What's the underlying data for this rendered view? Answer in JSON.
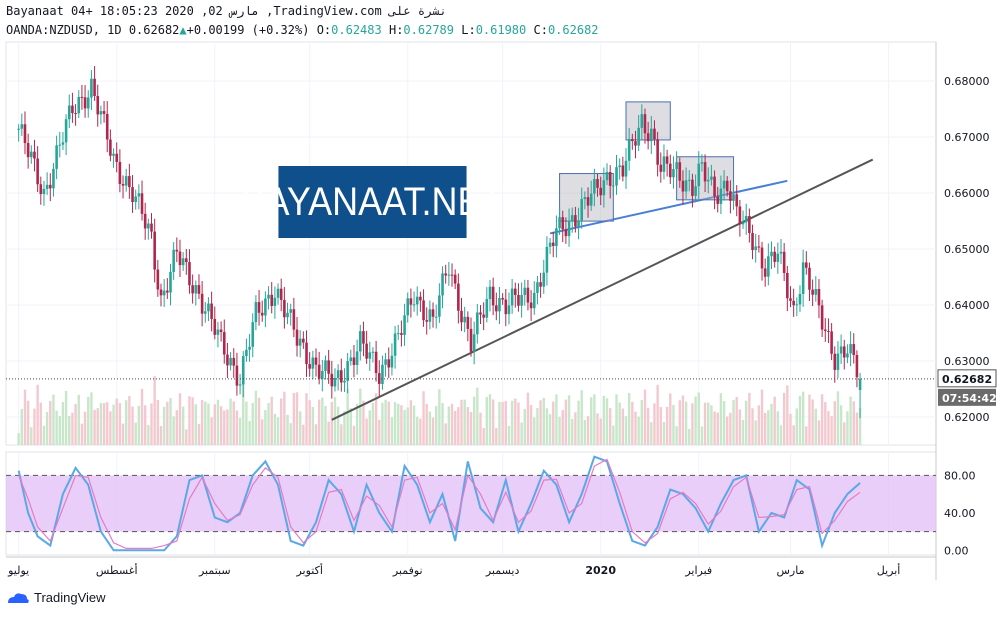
{
  "header": {
    "line1": "Bayanaat 04+ 18:05:23 2020 ,02 مارس ,TradingView.com نشرة على",
    "symbol": "OANDA:NZDUSD, 1D",
    "last": "0.62682",
    "change": "+0.00199 (+0.32%)",
    "o_label": "O:",
    "o": "0.62483",
    "h_label": "H:",
    "h": "0.62789",
    "l_label": "L:",
    "l": "0.61980",
    "c_label": "C:",
    "c": "0.62682"
  },
  "logo_text": "BAYANAAT.NET",
  "footer": {
    "brand": "TradingView"
  },
  "colors": {
    "up": "#26a69a",
    "down": "#b2264c",
    "volume_up": "#c8e6c9",
    "volume_down": "#f3c9cf",
    "trend": "#555555",
    "neck": "#4a7fd4",
    "stoch_k": "#5aa8e8",
    "stoch_d": "#e57bc4",
    "stoch_band": "#e1bdf7"
  },
  "chart_data": [
    {
      "type": "candlestick",
      "title": "",
      "ylim": [
        0.615,
        0.687
      ],
      "y_ticks": [
        "0.68000",
        "0.67000",
        "0.66000",
        "0.65000",
        "0.64000",
        "0.63000",
        "0.62000"
      ],
      "y_tick_values": [
        0.68,
        0.67,
        0.66,
        0.65,
        0.64,
        0.63,
        0.62
      ],
      "x_ticks": [
        "يوليو",
        "أغسطس",
        "سبتمبر",
        "أكتوبر",
        "نوفمبر",
        "ديسمبر",
        "2020",
        "فبراير",
        "مارس",
        "أبريل"
      ],
      "x_tick_days": [
        0,
        31,
        62,
        92,
        123,
        153,
        184,
        215,
        244,
        275
      ],
      "last_price_label": "0.62682",
      "countdown_label": "07:54:42",
      "trend_lines": [
        {
          "name": "support",
          "x": [
            99,
            270
          ],
          "y": [
            0.6195,
            0.666
          ]
        },
        {
          "name": "neck",
          "x": [
            168,
            243
          ],
          "y": [
            0.6528,
            0.6622
          ]
        }
      ],
      "boxes": [
        {
          "x": [
            171,
            188
          ],
          "y": [
            0.655,
            0.6635
          ]
        },
        {
          "x": [
            192,
            206
          ],
          "y": [
            0.6695,
            0.6763
          ]
        },
        {
          "x": [
            208,
            226
          ],
          "y": [
            0.6588,
            0.6665
          ]
        }
      ],
      "anchors_close": [
        [
          0,
          0.6715
        ],
        [
          8,
          0.66
        ],
        [
          17,
          0.675
        ],
        [
          23,
          0.679
        ],
        [
          30,
          0.666
        ],
        [
          36,
          0.66
        ],
        [
          42,
          0.652
        ],
        [
          45,
          0.641
        ],
        [
          50,
          0.649
        ],
        [
          57,
          0.642
        ],
        [
          64,
          0.633
        ],
        [
          70,
          0.627
        ],
        [
          75,
          0.638
        ],
        [
          81,
          0.643
        ],
        [
          88,
          0.634
        ],
        [
          94,
          0.629
        ],
        [
          100,
          0.626
        ],
        [
          108,
          0.633
        ],
        [
          114,
          0.628
        ],
        [
          120,
          0.634
        ],
        [
          125,
          0.642
        ],
        [
          131,
          0.637
        ],
        [
          136,
          0.647
        ],
        [
          143,
          0.633
        ],
        [
          149,
          0.642
        ],
        [
          154,
          0.64
        ],
        [
          163,
          0.642
        ],
        [
          170,
          0.653
        ],
        [
          176,
          0.656
        ],
        [
          182,
          0.66
        ],
        [
          186,
          0.663
        ],
        [
          191,
          0.664
        ],
        [
          197,
          0.673
        ],
        [
          200,
          0.671
        ],
        [
          203,
          0.664
        ],
        [
          208,
          0.664
        ],
        [
          213,
          0.661
        ],
        [
          216,
          0.664
        ],
        [
          220,
          0.66
        ],
        [
          224,
          0.662
        ],
        [
          227,
          0.656
        ],
        [
          232,
          0.652
        ],
        [
          236,
          0.647
        ],
        [
          240,
          0.649
        ],
        [
          245,
          0.639
        ],
        [
          248,
          0.647
        ],
        [
          254,
          0.637
        ],
        [
          258,
          0.631
        ],
        [
          262,
          0.632
        ],
        [
          266,
          0.6268
        ]
      ],
      "last_day": 266
    },
    {
      "type": "line",
      "title": "",
      "ylim": [
        -5,
        105
      ],
      "y_ticks": [
        "80.00",
        "40.00",
        "0.00"
      ],
      "y_tick_values": [
        80,
        40,
        0
      ],
      "bands": [
        20,
        80
      ],
      "series": [
        {
          "name": "",
          "x": [
            0,
            3,
            6,
            10,
            14,
            18,
            22,
            26,
            30,
            34,
            38,
            42,
            46,
            50,
            54,
            58,
            62,
            66,
            70,
            74,
            78,
            82,
            86,
            90,
            94,
            98,
            102,
            106,
            110,
            114,
            118,
            122,
            126,
            130,
            134,
            138,
            142,
            146,
            150,
            154,
            158,
            162,
            166,
            170,
            174,
            178,
            182,
            186,
            190,
            194,
            198,
            202,
            206,
            210,
            214,
            218,
            222,
            226,
            230,
            234,
            238,
            242,
            246,
            250,
            254,
            258,
            262,
            266
          ],
          "y": [
            85,
            40,
            15,
            5,
            60,
            88,
            70,
            20,
            0,
            0,
            0,
            0,
            0,
            15,
            75,
            80,
            35,
            30,
            40,
            80,
            95,
            70,
            10,
            5,
            30,
            75,
            60,
            20,
            70,
            40,
            20,
            90,
            70,
            30,
            60,
            10,
            95,
            45,
            30,
            75,
            20,
            50,
            85,
            70,
            30,
            60,
            100,
            95,
            50,
            10,
            5,
            25,
            65,
            60,
            45,
            20,
            50,
            75,
            80,
            20,
            40,
            35,
            75,
            65,
            5,
            40,
            60,
            72
          ]
        },
        {
          "name": "",
          "x": [
            0,
            3,
            6,
            10,
            14,
            18,
            22,
            26,
            30,
            34,
            38,
            42,
            46,
            50,
            54,
            58,
            62,
            66,
            70,
            74,
            78,
            82,
            86,
            90,
            94,
            98,
            102,
            106,
            110,
            114,
            118,
            122,
            126,
            130,
            134,
            138,
            142,
            146,
            150,
            154,
            158,
            162,
            166,
            170,
            174,
            178,
            182,
            186,
            190,
            194,
            198,
            202,
            206,
            210,
            214,
            218,
            222,
            226,
            230,
            234,
            238,
            242,
            246,
            250,
            254,
            258,
            262,
            266
          ],
          "y": [
            80,
            55,
            25,
            10,
            45,
            80,
            78,
            35,
            8,
            2,
            2,
            2,
            5,
            10,
            55,
            78,
            50,
            32,
            38,
            70,
            88,
            78,
            25,
            8,
            20,
            62,
            65,
            32,
            58,
            48,
            25,
            75,
            78,
            40,
            50,
            22,
            80,
            60,
            32,
            62,
            30,
            42,
            75,
            76,
            40,
            50,
            90,
            97,
            62,
            20,
            8,
            18,
            55,
            62,
            50,
            28,
            42,
            68,
            78,
            35,
            36,
            38,
            65,
            68,
            18,
            32,
            52,
            62
          ]
        }
      ]
    }
  ]
}
